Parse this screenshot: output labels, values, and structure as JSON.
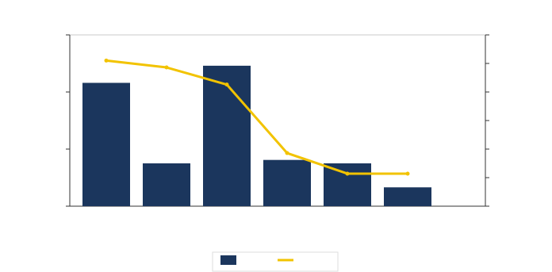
{
  "chart_data": {
    "type": "bar",
    "title": "",
    "xlabel": "",
    "ylabel": "",
    "y2label": "",
    "categories": [
      "",
      "",
      "",
      "",
      "",
      ""
    ],
    "series": [
      {
        "kind": "bar",
        "axis": "left",
        "color": "#1b365d",
        "values": [
          0.72,
          0.25,
          0.82,
          0.27,
          0.25,
          0.11
        ]
      },
      {
        "kind": "line",
        "axis": "right",
        "color": "#f2c300",
        "values": [
          0.85,
          0.81,
          0.71,
          0.31,
          0.19,
          0.19
        ]
      }
    ],
    "ylim": [
      0,
      1
    ],
    "y2lim": [
      0,
      1
    ],
    "legend_position": "bottom",
    "grid": false
  }
}
